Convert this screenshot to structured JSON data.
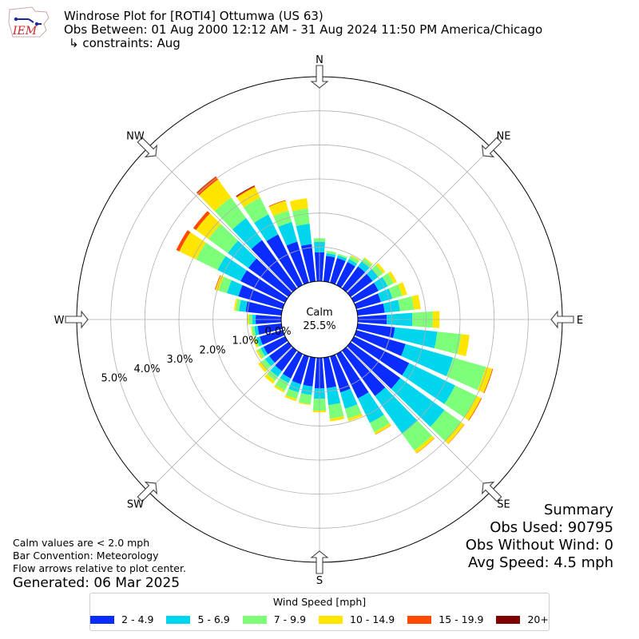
{
  "header": {
    "logo_text": "IEM",
    "title": "Windrose Plot for [ROTI4] Ottumwa (US 63)",
    "subtitle": "Obs Between: 01 Aug 2000 12:12 AM - 31 Aug 2024 11:50 PM America/Chicago",
    "constraints": "↳ constraints: Aug"
  },
  "summary": {
    "heading": "Summary",
    "obs_used": "Obs Used: 90795",
    "obs_without_wind": "Obs Without Wind: 0",
    "avg_speed": "Avg Speed: 4.5 mph"
  },
  "notes": {
    "calm_note": "Calm values are < 2.0 mph",
    "bar_convention": "Bar Convention: Meteorology",
    "flow_note": "Flow arrows relative to plot center.",
    "generated": "Generated: 06 Mar 2025"
  },
  "chart_data": {
    "type": "windrose",
    "calm_label": "Calm",
    "calm_value": "25.5%",
    "rlim": [
      0,
      6
    ],
    "radial_ticks": [
      0,
      1,
      2,
      3,
      4,
      5
    ],
    "radial_tick_labels": [
      "0.0%",
      "1.0%",
      "2.0%",
      "3.0%",
      "4.0%",
      "5.0%"
    ],
    "compass_labels": [
      "N",
      "NE",
      "E",
      "SE",
      "S",
      "SW",
      "W",
      "NW"
    ],
    "legend_title": "Wind Speed [mph]",
    "bins": [
      {
        "label": "2 - 4.9",
        "color": "#0a2cff"
      },
      {
        "label": "5 - 6.9",
        "color": "#00d5ee"
      },
      {
        "label": "7 - 9.9",
        "color": "#7dff7a"
      },
      {
        "label": "10 - 14.9",
        "color": "#ffe500"
      },
      {
        "label": "15 - 19.9",
        "color": "#ff4a00"
      },
      {
        "label": "20+",
        "color": "#7f0000"
      }
    ],
    "directions": [
      0,
      10,
      20,
      30,
      40,
      50,
      60,
      70,
      80,
      90,
      100,
      110,
      120,
      130,
      140,
      150,
      160,
      170,
      180,
      190,
      200,
      210,
      220,
      230,
      240,
      250,
      260,
      270,
      280,
      290,
      300,
      310,
      320,
      330,
      340,
      350
    ],
    "cumulative": [
      [
        0.85,
        1.15,
        1.26,
        1.26,
        1.26,
        1.26
      ],
      [
        0.75,
        0.83,
        0.9,
        0.9,
        0.9,
        0.9
      ],
      [
        0.75,
        0.83,
        0.88,
        0.88,
        0.88,
        0.88
      ],
      [
        0.75,
        0.85,
        0.95,
        0.98,
        0.98,
        0.98
      ],
      [
        0.8,
        0.98,
        1.1,
        1.13,
        1.13,
        1.13
      ],
      [
        0.8,
        1.0,
        1.18,
        1.26,
        1.26,
        1.26
      ],
      [
        0.8,
        1.1,
        1.3,
        1.4,
        1.4,
        1.4
      ],
      [
        0.75,
        1.1,
        1.4,
        1.55,
        1.55,
        1.55
      ],
      [
        0.8,
        1.25,
        1.66,
        1.86,
        1.86,
        1.86
      ],
      [
        0.85,
        1.6,
        2.2,
        2.4,
        2.4,
        2.4
      ],
      [
        1.1,
        2.35,
        3.05,
        3.3,
        3.3,
        3.3
      ],
      [
        1.5,
        2.95,
        3.95,
        4.15,
        4.17,
        4.17
      ],
      [
        1.8,
        3.3,
        4.0,
        4.15,
        4.17,
        4.17
      ],
      [
        1.8,
        3.4,
        4.0,
        4.12,
        4.13,
        4.13
      ],
      [
        1.65,
        3.0,
        3.62,
        3.72,
        3.73,
        3.73
      ],
      [
        1.45,
        2.25,
        2.55,
        2.62,
        2.63,
        2.63
      ],
      [
        1.1,
        1.6,
        1.9,
        1.98,
        1.98,
        1.98
      ],
      [
        0.9,
        1.4,
        1.8,
        1.88,
        1.88,
        1.88
      ],
      [
        0.9,
        1.2,
        1.55,
        1.6,
        1.6,
        1.6
      ],
      [
        0.85,
        1.1,
        1.37,
        1.4,
        1.4,
        1.4
      ],
      [
        0.85,
        1.1,
        1.3,
        1.37,
        1.37,
        1.37
      ],
      [
        0.8,
        0.95,
        1.2,
        1.26,
        1.26,
        1.26
      ],
      [
        0.75,
        0.95,
        1.1,
        1.2,
        1.2,
        1.2
      ],
      [
        0.7,
        0.85,
        1.0,
        1.1,
        1.1,
        1.1
      ],
      [
        0.7,
        0.8,
        0.9,
        0.95,
        0.95,
        0.95
      ],
      [
        0.7,
        0.8,
        0.85,
        0.9,
        0.9,
        0.9
      ],
      [
        0.7,
        0.8,
        0.88,
        0.9,
        0.9,
        0.9
      ],
      [
        0.75,
        0.85,
        0.95,
        1.0,
        1.0,
        1.0
      ],
      [
        1.05,
        1.25,
        1.35,
        1.4,
        1.4,
        1.4
      ],
      [
        1.35,
        1.7,
        1.95,
        2.05,
        2.07,
        2.07
      ],
      [
        1.45,
        2.2,
        2.9,
        3.45,
        3.55,
        3.55
      ],
      [
        1.45,
        2.2,
        2.9,
        3.35,
        3.45,
        3.45
      ],
      [
        1.75,
        2.55,
        3.3,
        3.95,
        4.05,
        4.06
      ],
      [
        1.65,
        2.3,
        2.85,
        3.2,
        3.23,
        3.25
      ],
      [
        1.25,
        1.85,
        2.2,
        2.5,
        2.52,
        2.52
      ],
      [
        1.1,
        1.7,
        2.15,
        2.45,
        2.45,
        2.45
      ]
    ]
  }
}
